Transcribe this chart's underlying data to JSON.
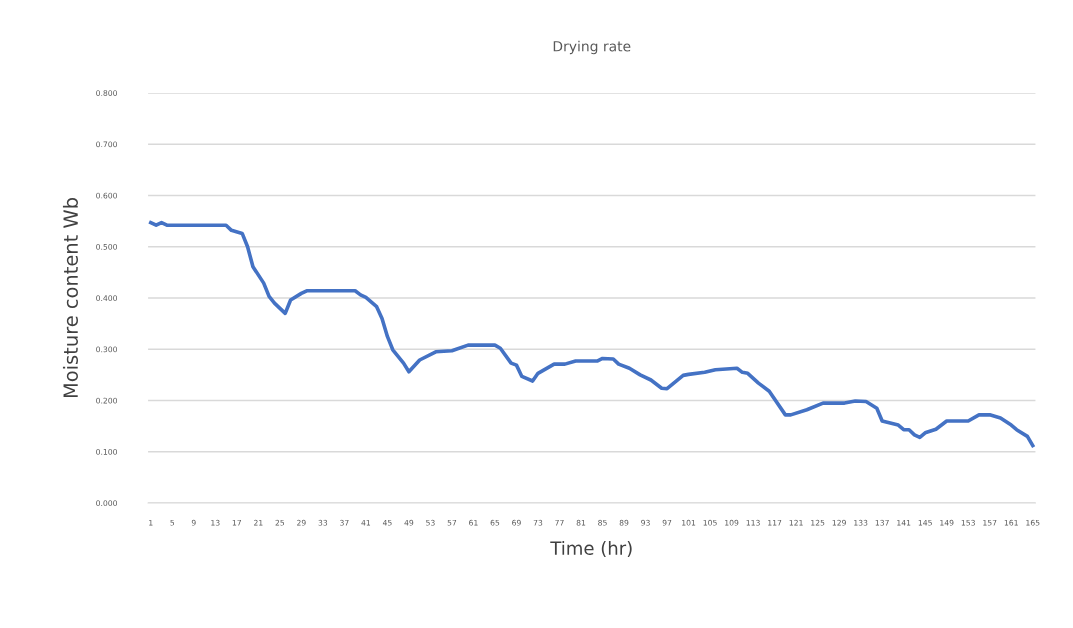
{
  "chart_data": {
    "type": "line",
    "title": "Drying rate",
    "xlabel": "Time (hr)",
    "ylabel": "Moisture content Wb",
    "x": [
      1,
      2,
      3,
      4,
      15,
      16,
      18,
      19,
      20,
      22,
      23,
      24,
      26,
      27,
      29,
      30,
      39,
      40,
      41,
      43,
      44,
      45,
      46,
      48,
      49,
      51,
      54,
      57,
      60,
      65,
      66,
      68,
      69,
      70,
      72,
      73,
      76,
      78,
      80,
      84,
      85,
      87,
      88,
      90,
      92,
      94,
      96,
      97,
      100,
      101,
      104,
      106,
      110,
      111,
      112,
      114,
      116,
      119,
      120,
      123,
      126,
      130,
      132,
      134,
      136,
      137,
      140,
      141,
      142,
      143,
      144,
      145,
      147,
      149,
      153,
      155,
      157,
      159,
      161,
      162,
      164,
      165
    ],
    "series": [
      {
        "color": "#4472c4",
        "values": [
          0.547,
          0.542,
          0.547,
          0.542,
          0.542,
          0.532,
          0.526,
          0.5,
          0.461,
          0.429,
          0.403,
          0.39,
          0.37,
          0.396,
          0.409,
          0.414,
          0.414,
          0.406,
          0.401,
          0.383,
          0.36,
          0.325,
          0.299,
          0.273,
          0.256,
          0.279,
          0.295,
          0.297,
          0.308,
          0.308,
          0.302,
          0.273,
          0.269,
          0.247,
          0.238,
          0.253,
          0.271,
          0.271,
          0.277,
          0.277,
          0.282,
          0.281,
          0.271,
          0.263,
          0.25,
          0.24,
          0.224,
          0.223,
          0.249,
          0.251,
          0.255,
          0.26,
          0.263,
          0.255,
          0.253,
          0.234,
          0.218,
          0.172,
          0.172,
          0.182,
          0.195,
          0.195,
          0.199,
          0.198,
          0.185,
          0.16,
          0.152,
          0.143,
          0.143,
          0.133,
          0.128,
          0.137,
          0.144,
          0.16,
          0.16,
          0.172,
          0.172,
          0.166,
          0.152,
          0.143,
          0.13,
          0.112
        ]
      }
    ],
    "xlim": [
      0.5,
      165.5
    ],
    "xticks": [
      1,
      5,
      9,
      13,
      17,
      21,
      25,
      29,
      33,
      37,
      41,
      45,
      49,
      53,
      57,
      61,
      65,
      69,
      73,
      77,
      81,
      85,
      89,
      93,
      97,
      101,
      105,
      109,
      113,
      117,
      121,
      125,
      129,
      133,
      137,
      141,
      145,
      149,
      153,
      157,
      161,
      165
    ],
    "ylim": [
      0,
      0.8
    ],
    "yticks": [
      {
        "value": 0,
        "label": "0.000"
      },
      {
        "value": 0.1,
        "label": "0.100"
      },
      {
        "value": 0.2,
        "label": "0.200"
      },
      {
        "value": 0.3,
        "label": "0.300"
      },
      {
        "value": 0.4,
        "label": "0.400"
      },
      {
        "value": 0.5,
        "label": "0.500"
      },
      {
        "value": 0.6,
        "label": "0.600"
      },
      {
        "value": 0.7,
        "label": "0.700"
      },
      {
        "value": 0.8,
        "label": "0.800"
      }
    ],
    "grid": "y",
    "legend": false,
    "marker": "none",
    "line_style": "solid"
  }
}
